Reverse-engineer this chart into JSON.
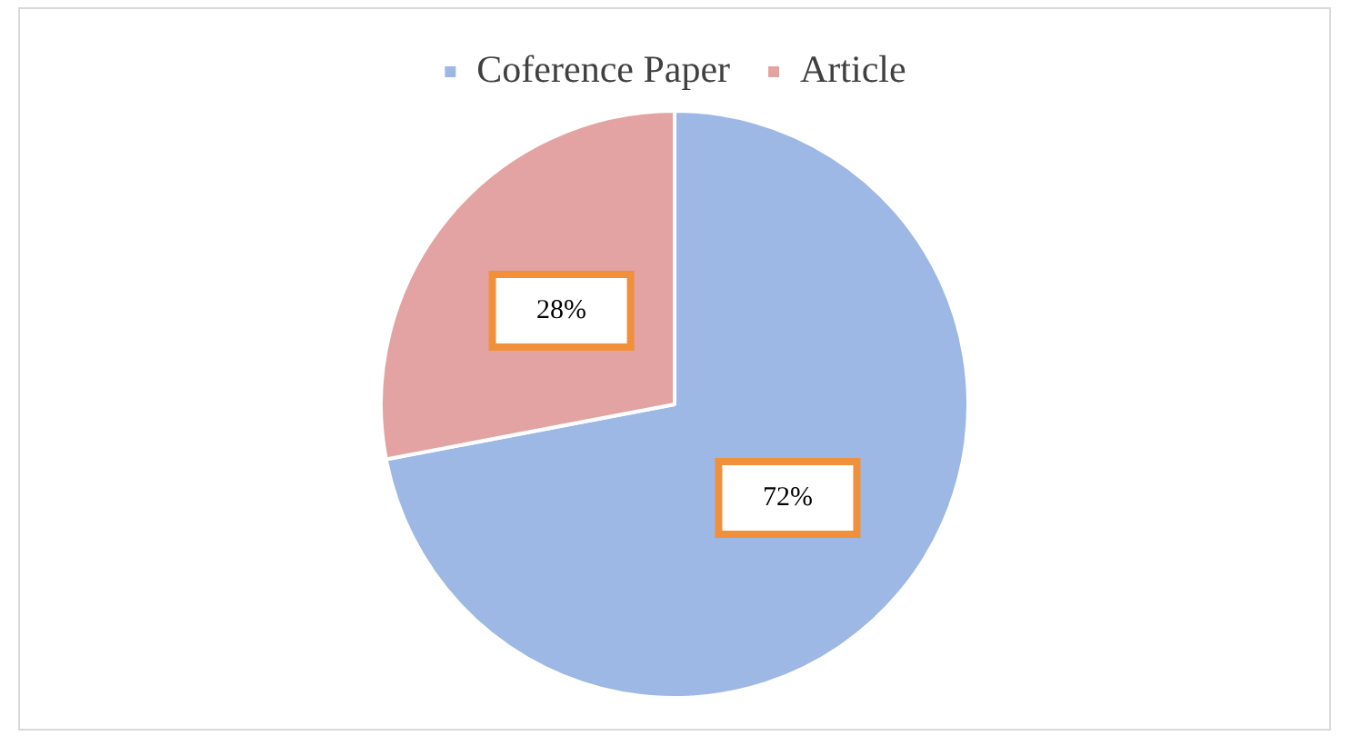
{
  "chart_data": {
    "type": "pie",
    "categories": [
      "Coference Paper",
      "Article"
    ],
    "values": [
      72,
      28
    ],
    "colors": [
      "#9db8e4",
      "#e3a3a2"
    ],
    "value_labels": [
      "72%",
      "28%"
    ],
    "legend": "top"
  }
}
